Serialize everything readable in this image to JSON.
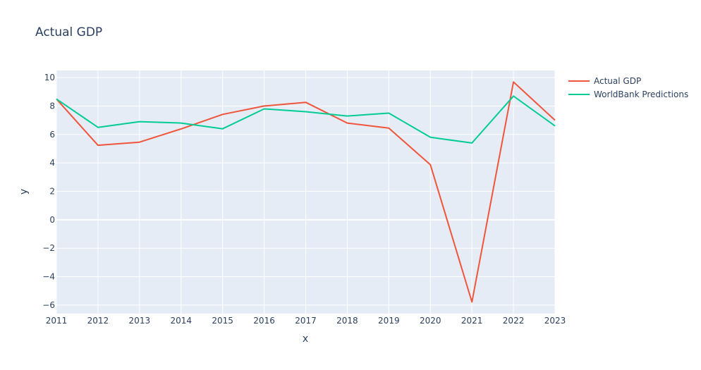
{
  "chart_data": {
    "type": "line",
    "title": "Actual GDP",
    "xlabel": "x",
    "ylabel": "y",
    "x": [
      2011,
      2012,
      2013,
      2014,
      2015,
      2016,
      2017,
      2018,
      2019,
      2020,
      2021,
      2022,
      2023
    ],
    "xlim": [
      2011,
      2023
    ],
    "ylim": [
      -6.6,
      10.5
    ],
    "x_ticks": [
      "2011",
      "2012",
      "2013",
      "2014",
      "2015",
      "2016",
      "2017",
      "2018",
      "2019",
      "2020",
      "2021",
      "2022",
      "2023"
    ],
    "y_ticks": [
      10,
      8,
      6,
      4,
      2,
      0,
      -2,
      -4,
      -6
    ],
    "y_tick_labels": [
      "10",
      "8",
      "6",
      "4",
      "2",
      "0",
      "−2",
      "−4",
      "−6"
    ],
    "grid": true,
    "legend_position": "top-right outside plot",
    "plot_background": "#e5ecf6",
    "series": [
      {
        "name": "Actual GDP",
        "color": "#ef553b",
        "values": [
          8.5,
          5.24,
          5.46,
          6.39,
          7.41,
          8.0,
          8.26,
          6.8,
          6.45,
          3.87,
          -5.78,
          9.69,
          7.0
        ]
      },
      {
        "name": "WorldBank Predictions",
        "color": "#00cc96",
        "values": [
          8.5,
          6.5,
          6.9,
          6.8,
          6.4,
          7.8,
          7.6,
          7.3,
          7.5,
          5.8,
          5.4,
          8.7,
          6.6
        ]
      }
    ]
  }
}
